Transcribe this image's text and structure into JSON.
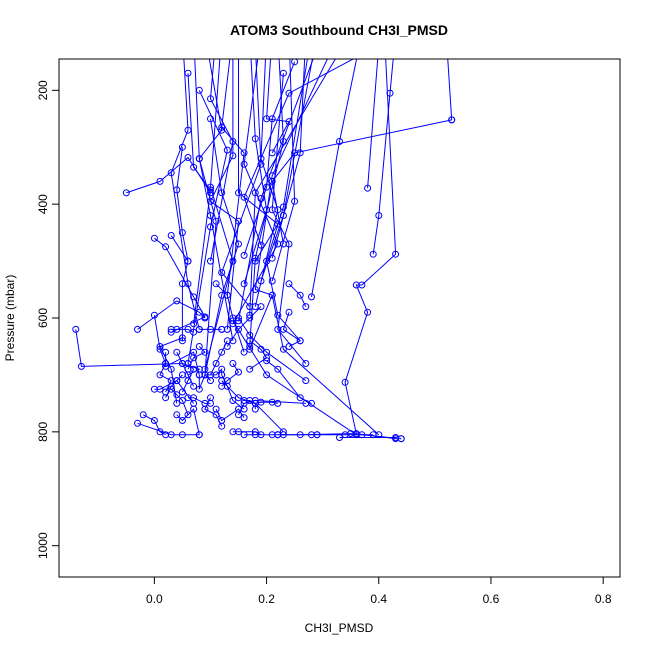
{
  "chart_data": {
    "type": "line",
    "title": "ATOM3 Southbound CH3I_PMSD",
    "xlabel": "CH3I_PMSD",
    "ylabel": "Pressure (mbar)",
    "xlim": [
      -0.17,
      0.83
    ],
    "ylim": [
      1055,
      145
    ],
    "y_reversed": true,
    "x_ticks": [
      0.0,
      0.2,
      0.4,
      0.6,
      0.8
    ],
    "x_tick_labels": [
      "0.0",
      "0.2",
      "0.4",
      "0.6",
      "0.8"
    ],
    "y_ticks": [
      200,
      400,
      600,
      800,
      1000
    ],
    "y_tick_labels": [
      "200",
      "400",
      "600",
      "800",
      "1000"
    ],
    "grid": false,
    "markers": "open-circle",
    "color": "#0000ff",
    "series": [
      {
        "x": [
          0.43,
          0.42,
          0.4,
          0.39
        ],
        "y": [
          100,
          205,
          420,
          488
        ]
      },
      {
        "x": [
          0.52,
          0.53
        ],
        "y": [
          100,
          252
        ]
      },
      {
        "x": [
          0.4,
          0.38
        ],
        "y": [
          120,
          372
        ]
      },
      {
        "x": [
          0.41,
          0.43,
          0.37,
          0.36,
          0.38,
          0.34,
          0.36,
          0.43
        ],
        "y": [
          100,
          488,
          542,
          542,
          590,
          713,
          803,
          812
        ]
      },
      {
        "x": [
          0.37,
          0.33,
          0.28
        ],
        "y": [
          100,
          290,
          563
        ]
      },
      {
        "x": [
          0.53,
          0.25,
          0.21,
          0.23
        ],
        "y": [
          252,
          310,
          360,
          470
        ]
      },
      {
        "x": [
          0.44,
          0.24,
          0.16,
          0.19
        ],
        "y": [
          100,
          205,
          388,
          472
        ]
      },
      {
        "x": [
          -0.05,
          0.01,
          0.06,
          0.1
        ],
        "y": [
          380,
          360,
          318,
          380
        ]
      },
      {
        "x": [
          0.05,
          0.06,
          0.03,
          0.06,
          0.08
        ],
        "y": [
          100,
          270,
          345,
          540,
          620
        ]
      },
      {
        "x": [
          0.05,
          0.04,
          0.05,
          0.06
        ],
        "y": [
          300,
          375,
          450,
          500
        ]
      },
      {
        "x": [
          0.0,
          0.02,
          0.07,
          0.09,
          0.03
        ],
        "y": [
          460,
          475,
          563,
          598,
          625
        ]
      },
      {
        "x": [
          0.03,
          0.06,
          0.05,
          0.05
        ],
        "y": [
          455,
          500,
          540,
          640
        ]
      },
      {
        "x": [
          0.09,
          0.12,
          0.08,
          0.1,
          0.14
        ],
        "y": [
          100,
          270,
          320,
          420,
          640
        ]
      },
      {
        "x": [
          0.11,
          0.1,
          0.14,
          0.1
        ],
        "y": [
          100,
          215,
          290,
          500
        ]
      },
      {
        "x": [
          0.14,
          0.12,
          0.16,
          0.13
        ],
        "y": [
          100,
          265,
          310,
          560
        ]
      },
      {
        "x": [
          0.21,
          0.2,
          0.24,
          0.21
        ],
        "y": [
          100,
          250,
          255,
          310
        ]
      },
      {
        "x": [
          0.14,
          0.14,
          0.1,
          0.15,
          0.13
        ],
        "y": [
          100,
          315,
          395,
          430,
          620
        ]
      },
      {
        "x": [
          0.15,
          0.15,
          0.22,
          0.18
        ],
        "y": [
          100,
          380,
          435,
          500
        ]
      },
      {
        "x": [
          0.17,
          0.18,
          0.2,
          0.16
        ],
        "y": [
          100,
          285,
          410,
          540
        ]
      },
      {
        "x": [
          0.19,
          0.16,
          0.22,
          0.14
        ],
        "y": [
          100,
          330,
          470,
          610
        ]
      },
      {
        "x": [
          0.06,
          0.07,
          0.1,
          0.07
        ],
        "y": [
          170,
          335,
          375,
          610
        ]
      },
      {
        "x": [
          0.07,
          0.08,
          0.11,
          0.09
        ],
        "y": [
          100,
          320,
          430,
          700
        ]
      },
      {
        "x": [
          0.08,
          0.13,
          0.1,
          0.06
        ],
        "y": [
          200,
          305,
          440,
          680
        ]
      },
      {
        "x": [
          0.12,
          0.1,
          0.14,
          0.09
        ],
        "y": [
          100,
          370,
          500,
          690
        ]
      },
      {
        "x": [
          0.1,
          0.12,
          0.15,
          0.12,
          0.09
        ],
        "y": [
          250,
          380,
          470,
          560,
          700
        ]
      },
      {
        "x": [
          0.18,
          0.19,
          0.12,
          0.17
        ],
        "y": [
          120,
          330,
          520,
          580
        ]
      },
      {
        "x": [
          0.22,
          0.23,
          0.18,
          0.17
        ],
        "y": [
          100,
          290,
          495,
          650
        ]
      },
      {
        "x": [
          0.25,
          0.21,
          0.2,
          0.16
        ],
        "y": [
          150,
          250,
          370,
          490
        ]
      },
      {
        "x": [
          0.3,
          0.19,
          0.15
        ],
        "y": [
          100,
          390,
          605
        ]
      },
      {
        "x": [
          0.35,
          0.18,
          0.17
        ],
        "y": [
          100,
          380,
          595
        ]
      },
      {
        "x": [
          0.27,
          0.26,
          0.21
        ],
        "y": [
          100,
          310,
          495
        ]
      },
      {
        "x": [
          0.2,
          0.19,
          0.22,
          0.18
        ],
        "y": [
          100,
          320,
          410,
          580
        ]
      },
      {
        "x": [
          0.29,
          0.23,
          0.19
        ],
        "y": [
          100,
          420,
          535
        ]
      },
      {
        "x": [
          0.33,
          0.21,
          0.18,
          0.21,
          0.17
        ],
        "y": [
          100,
          350,
          550,
          560,
          655
        ]
      },
      {
        "x": [
          0.28,
          0.23,
          0.2,
          0.22,
          0.26
        ],
        "y": [
          100,
          405,
          500,
          595,
          640
        ]
      },
      {
        "x": [
          0.24,
          0.25,
          0.21
        ],
        "y": [
          100,
          395,
          535
        ]
      },
      {
        "x": [
          0.23,
          0.21,
          0.24,
          0.22,
          0.27
        ],
        "y": [
          170,
          410,
          470,
          620,
          680
        ]
      },
      {
        "x": [
          -0.03,
          0.04,
          0.08,
          0.09
        ],
        "y": [
          620,
          570,
          590,
          600
        ]
      },
      {
        "x": [
          -0.14,
          -0.13,
          0.05,
          0.07
        ],
        "y": [
          620,
          685,
          680,
          720
        ]
      },
      {
        "x": [
          0.0,
          0.01,
          0.02
        ],
        "y": [
          595,
          655,
          680
        ]
      },
      {
        "x": [
          0.05,
          0.01,
          0.03,
          0.04
        ],
        "y": [
          635,
          650,
          690,
          750
        ]
      },
      {
        "x": [
          0.03,
          0.04,
          0.06,
          0.07
        ],
        "y": [
          620,
          620,
          620,
          625
        ]
      },
      {
        "x": [
          0.08,
          0.1,
          0.12,
          0.12
        ],
        "y": [
          620,
          620,
          620,
          620
        ]
      },
      {
        "x": [
          0.02,
          0.02,
          0.07,
          0.08
        ],
        "y": [
          660,
          685,
          660,
          700
        ]
      },
      {
        "x": [
          0.0,
          0.01,
          0.04,
          0.07
        ],
        "y": [
          725,
          725,
          710,
          750
        ]
      },
      {
        "x": [
          0.03,
          0.04,
          0.05,
          0.06
        ],
        "y": [
          725,
          735,
          745,
          770
        ]
      },
      {
        "x": [
          0.06,
          0.07,
          0.09,
          0.1
        ],
        "y": [
          740,
          740,
          750,
          750
        ]
      },
      {
        "x": [
          0.08,
          0.08,
          0.09,
          0.1
        ],
        "y": [
          700,
          725,
          700,
          710
        ]
      },
      {
        "x": [
          0.09,
          0.11,
          0.12,
          0.12
        ],
        "y": [
          700,
          700,
          690,
          700
        ]
      },
      {
        "x": [
          0.12,
          0.13,
          0.14,
          0.16
        ],
        "y": [
          700,
          720,
          745,
          760
        ]
      },
      {
        "x": [
          0.16,
          0.17,
          0.18,
          0.18
        ],
        "y": [
          745,
          745,
          750,
          760
        ]
      },
      {
        "x": [
          0.15,
          0.16,
          0.18,
          0.27
        ],
        "y": [
          770,
          750,
          745,
          750
        ]
      },
      {
        "x": [
          0.18,
          0.19,
          0.21,
          0.22
        ],
        "y": [
          750,
          748,
          748,
          750
        ]
      },
      {
        "x": [
          0.2,
          0.22,
          0.26,
          0.28
        ],
        "y": [
          675,
          690,
          740,
          750
        ]
      },
      {
        "x": [
          0.12,
          0.15,
          0.18,
          0.23
        ],
        "y": [
          710,
          740,
          750,
          800
        ]
      },
      {
        "x": [
          -0.02,
          0.0,
          0.01,
          0.02
        ],
        "y": [
          770,
          780,
          800,
          805
        ]
      },
      {
        "x": [
          -0.03,
          0.03,
          0.05,
          0.08
        ],
        "y": [
          785,
          805,
          805,
          805
        ]
      },
      {
        "x": [
          0.04,
          0.05,
          0.07,
          0.08
        ],
        "y": [
          770,
          780,
          760,
          805
        ]
      },
      {
        "x": [
          0.14,
          0.15,
          0.18,
          0.19
        ],
        "y": [
          800,
          800,
          800,
          805
        ]
      },
      {
        "x": [
          0.16,
          0.18,
          0.21,
          0.22
        ],
        "y": [
          805,
          805,
          805,
          805
        ]
      },
      {
        "x": [
          0.22,
          0.23,
          0.28,
          0.29
        ],
        "y": [
          805,
          805,
          805,
          805
        ]
      },
      {
        "x": [
          0.29,
          0.34,
          0.37,
          0.39
        ],
        "y": [
          805,
          805,
          805,
          805
        ]
      },
      {
        "x": [
          0.33,
          0.43,
          0.44
        ],
        "y": [
          810,
          810,
          812
        ]
      },
      {
        "x": [
          0.22,
          0.26,
          0.35,
          0.44
        ],
        "y": [
          805,
          805,
          803,
          812
        ]
      },
      {
        "x": [
          0.36,
          0.2,
          0.14
        ],
        "y": [
          805,
          700,
          605
        ]
      },
      {
        "x": [
          0.4,
          0.23,
          0.21
        ],
        "y": [
          805,
          655,
          560
        ]
      },
      {
        "x": [
          0.27,
          0.2,
          0.17,
          0.15
        ],
        "y": [
          710,
          660,
          630,
          600
        ]
      },
      {
        "x": [
          0.24,
          0.23,
          0.26,
          0.24
        ],
        "y": [
          590,
          620,
          640,
          650
        ]
      },
      {
        "x": [
          0.24,
          0.26,
          0.27
        ],
        "y": [
          540,
          560,
          580
        ]
      },
      {
        "x": [
          0.19,
          0.17,
          0.15,
          0.13
        ],
        "y": [
          580,
          600,
          620,
          650
        ]
      },
      {
        "x": [
          0.11,
          0.13,
          0.14,
          0.16
        ],
        "y": [
          540,
          560,
          600,
          660
        ]
      },
      {
        "x": [
          0.13,
          0.12,
          0.11,
          0.1
        ],
        "y": [
          640,
          660,
          680,
          700
        ]
      },
      {
        "x": [
          0.04,
          0.05,
          0.08,
          0.06
        ],
        "y": [
          660,
          680,
          690,
          700
        ]
      },
      {
        "x": [
          0.06,
          0.07,
          0.06,
          0.05
        ],
        "y": [
          680,
          690,
          710,
          730
        ]
      },
      {
        "x": [
          0.08,
          0.09,
          0.07,
          0.06
        ],
        "y": [
          650,
          660,
          670,
          690
        ]
      },
      {
        "x": [
          0.05,
          0.04,
          0.03,
          0.02
        ],
        "y": [
          700,
          710,
          720,
          740
        ]
      },
      {
        "x": [
          0.1,
          0.09,
          0.11,
          0.12
        ],
        "y": [
          740,
          760,
          770,
          790
        ]
      },
      {
        "x": [
          0.11,
          0.12,
          0.15,
          0.16
        ],
        "y": [
          760,
          780,
          760,
          775
        ]
      },
      {
        "x": [
          0.02,
          0.01,
          0.03,
          0.02
        ],
        "y": [
          680,
          700,
          710,
          730
        ]
      },
      {
        "x": [
          0.17,
          0.19,
          0.2,
          0.17
        ],
        "y": [
          640,
          655,
          670,
          690
        ]
      },
      {
        "x": [
          0.14,
          0.15,
          0.13,
          0.12
        ],
        "y": [
          680,
          695,
          710,
          720
        ]
      }
    ]
  }
}
